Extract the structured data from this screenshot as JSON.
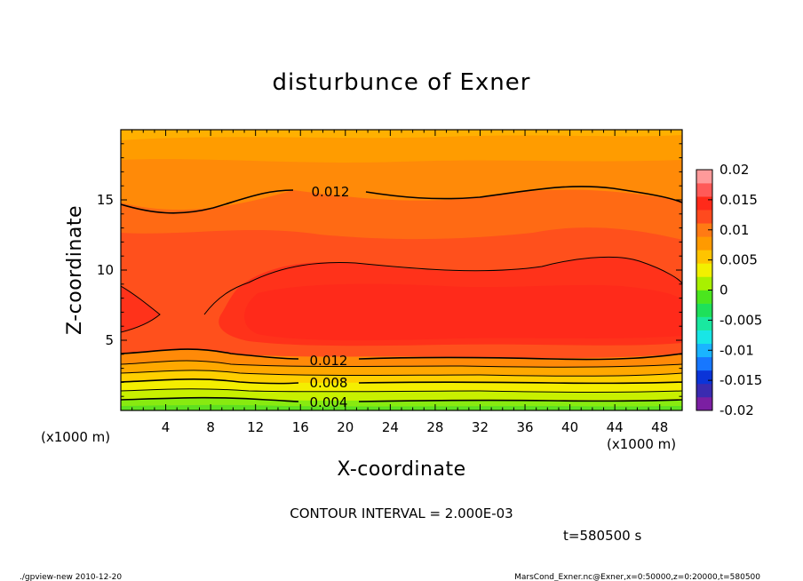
{
  "chart_data": {
    "type": "heatmap",
    "title": "disturbunce of Exner",
    "xlabel": "X-coordinate",
    "ylabel": "Z-coordinate",
    "x_unit": "(x1000 m)",
    "y_unit": "(x1000 m)",
    "xlim": [
      0,
      50
    ],
    "ylim": [
      0,
      20
    ],
    "x_ticks": [
      "4",
      "8",
      "12",
      "16",
      "20",
      "24",
      "28",
      "32",
      "36",
      "40",
      "44",
      "48"
    ],
    "y_ticks": [
      "5",
      "10",
      "15"
    ],
    "colorbar_ticks": [
      "0.02",
      "0.015",
      "0.01",
      "0.005",
      "0",
      "-0.005",
      "-0.01",
      "-0.015",
      "-0.02"
    ],
    "colorbar_range": [
      -0.02,
      0.02
    ],
    "contour_interval": "CONTOUR INTERVAL = 2.000E-03",
    "contour_labels": [
      "0.012",
      "0.012",
      "0.008",
      "0.004"
    ],
    "contour_levels": [
      0.002,
      0.004,
      0.006,
      0.008,
      0.01,
      0.012,
      0.014
    ],
    "time_label": "t=580500 s",
    "footer_left": "./gpview-new   2010-12-20",
    "footer_right": "MarsCond_Exner.nc@Exner,x=0:50000,z=0:20000,t=580500",
    "colorscale": [
      "#7b1fa2",
      "#3a2bb0",
      "#0b34d8",
      "#1777ff",
      "#1ab4ff",
      "#18e6e6",
      "#19e8a0",
      "#1ee05a",
      "#4be61e",
      "#a8f000",
      "#f2f000",
      "#ffc400",
      "#ff9a00",
      "#ff7a14",
      "#ff4a1e",
      "#ff2a1a",
      "#ff5a58",
      "#ff9a9a"
    ]
  }
}
